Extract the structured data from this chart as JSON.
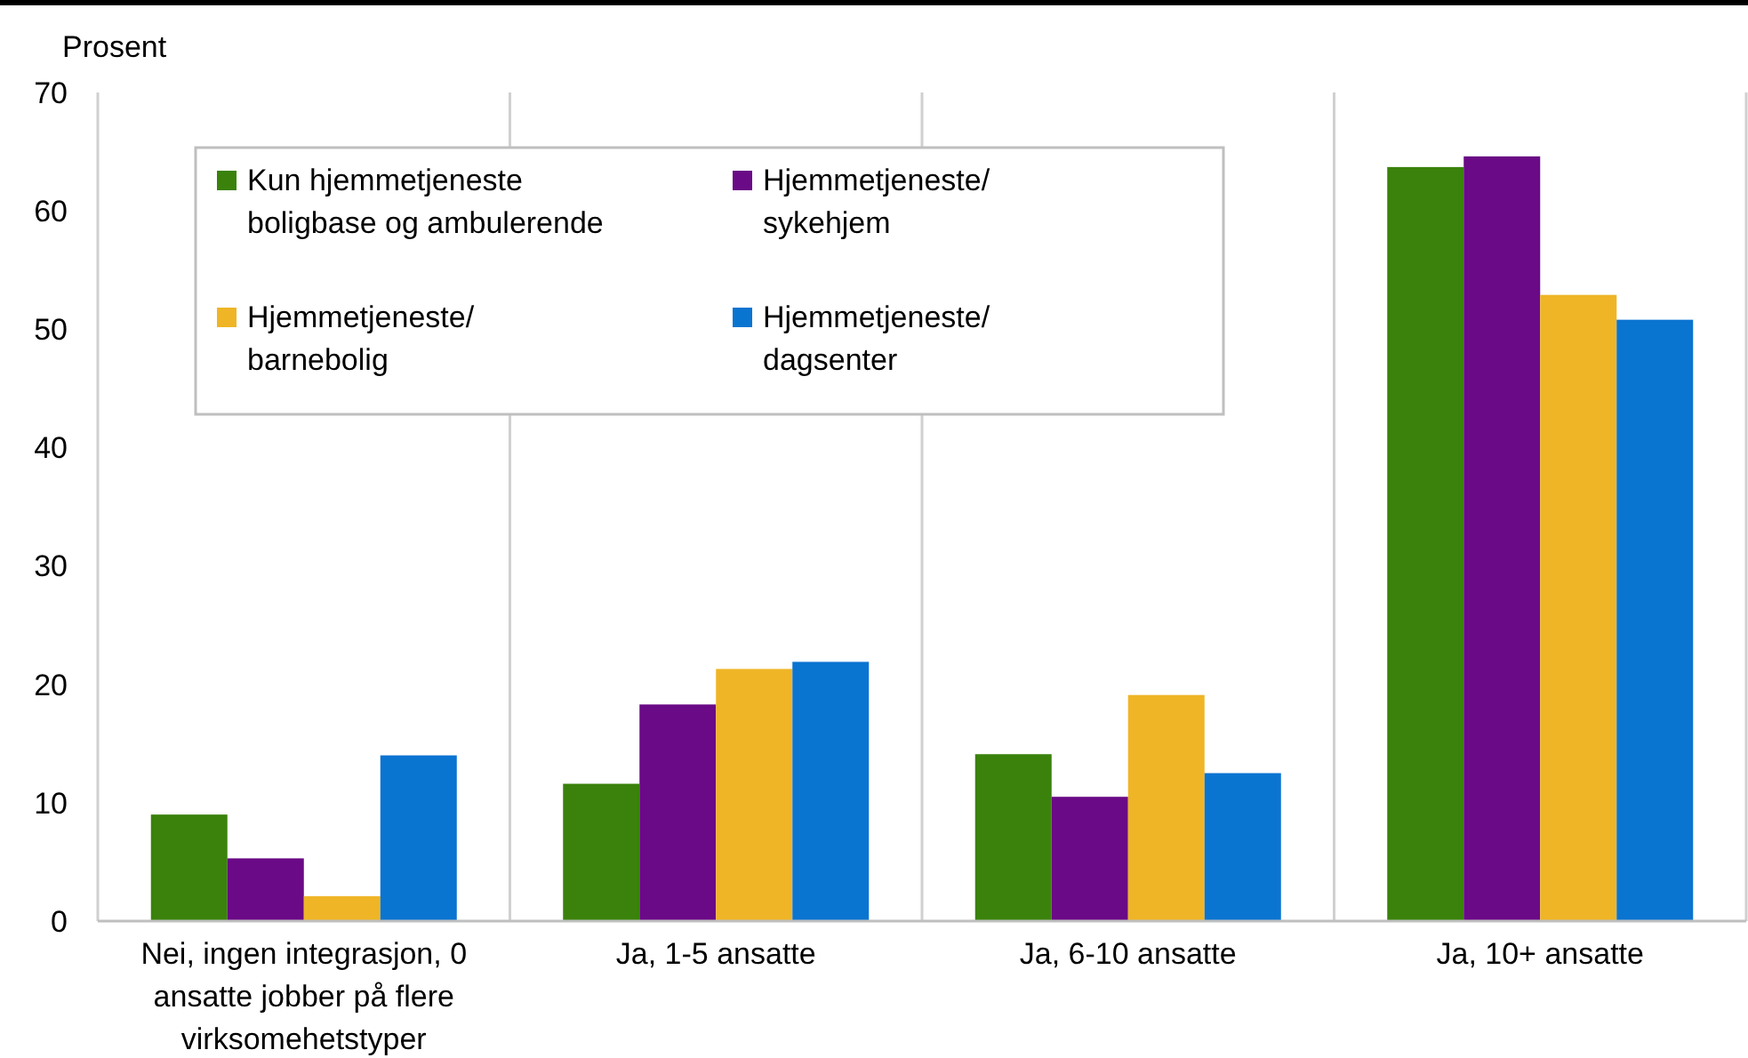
{
  "chart_data": {
    "type": "bar",
    "ylabel": "Prosent",
    "categories": [
      "Nei, ingen integrasjon, 0 ansatte jobber på flere virksomehetstyper",
      "Ja, 1-5 ansatte",
      "Ja, 6-10 ansatte",
      "Ja, 10+ ansatte"
    ],
    "series": [
      {
        "name": "Kun hjemmetjeneste\nboligbase og ambulerende",
        "color": "#3a820c",
        "values": [
          9.0,
          11.6,
          14.1,
          63.7
        ]
      },
      {
        "name": "Hjemmetjeneste/\nsykehjem",
        "color": "#6a0a86",
        "values": [
          5.3,
          18.3,
          10.5,
          64.6
        ]
      },
      {
        "name": "Hjemmetjeneste/\nbarnebolig",
        "color": "#efb526",
        "values": [
          2.1,
          21.3,
          19.1,
          52.9
        ]
      },
      {
        "name": "Hjemmetjeneste/\ndagsenter",
        "color": "#0a74d1",
        "values": [
          14.0,
          21.9,
          12.5,
          50.8
        ]
      }
    ],
    "ylim": [
      0,
      70
    ],
    "yticks": [
      0,
      10,
      20,
      30,
      40,
      50,
      60,
      70
    ],
    "grid": "x",
    "legend": "top left"
  }
}
